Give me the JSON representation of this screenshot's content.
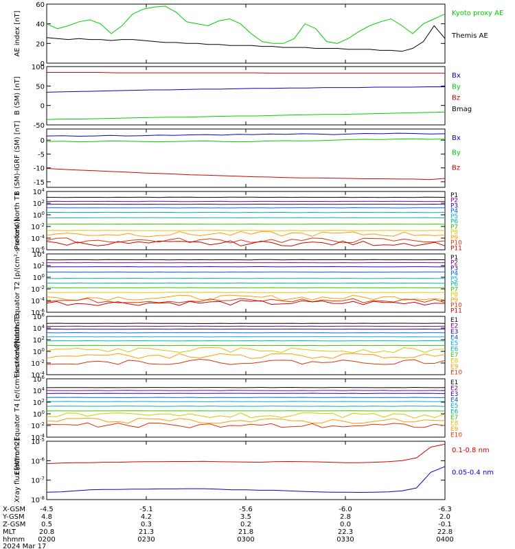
{
  "chart_data": [
    {
      "type": "line",
      "ylabel": "AE index [nT]",
      "ylim": [
        0,
        60
      ],
      "y_ticks": [
        "0",
        "20",
        "40",
        "60"
      ],
      "series": [
        {
          "name": "Kyoto proxy AE",
          "color": "#00cc00",
          "values": [
            40,
            35,
            38,
            42,
            44,
            40,
            30,
            38,
            50,
            55,
            57,
            58,
            52,
            42,
            40,
            38,
            43,
            45,
            40,
            30,
            22,
            20,
            20,
            25,
            40,
            35,
            22,
            20,
            25,
            32,
            38,
            42,
            45,
            38,
            30,
            40,
            45,
            50
          ]
        },
        {
          "name": "Themis AE",
          "color": "#000000",
          "values": [
            26,
            25,
            24,
            25,
            24,
            24,
            23,
            24,
            24,
            23,
            22,
            21,
            21,
            20,
            20,
            19,
            19,
            18,
            18,
            18,
            17,
            17,
            16,
            16,
            16,
            15,
            15,
            15,
            14,
            14,
            14,
            13,
            13,
            12,
            15,
            22,
            38,
            25
          ]
        }
      ]
    },
    {
      "type": "line",
      "ylabel": "B (SM) [nT]",
      "ylim": [
        -50,
        100
      ],
      "y_ticks": [
        "-50",
        "0",
        "50",
        "100"
      ],
      "series": [
        {
          "name": "Bx",
          "color": "#0000cc",
          "values": [
            34,
            35,
            36,
            37,
            38,
            39,
            40,
            40,
            41,
            42,
            42,
            43,
            44,
            44,
            45,
            45,
            46,
            46,
            46,
            47,
            47,
            47,
            48,
            48
          ]
        },
        {
          "name": "By",
          "color": "#00cc00",
          "values": [
            -36,
            -35,
            -35,
            -34,
            -33,
            -32,
            -31,
            -30,
            -30,
            -29,
            -28,
            -27,
            -27,
            -26,
            -25,
            -24,
            -23,
            -23,
            -22,
            -21,
            -20,
            -19,
            -18,
            -17
          ]
        },
        {
          "name": "Bz",
          "color": "#cc0000",
          "values": [
            85,
            85,
            85,
            85,
            84,
            84,
            84,
            84,
            84,
            84,
            84,
            84,
            84,
            83,
            83,
            83,
            83,
            83,
            83,
            83,
            83,
            83,
            83,
            83
          ]
        },
        {
          "name": "Bmag",
          "color": "#000000",
          "values": [
            100,
            100,
            100,
            100,
            100,
            100,
            100,
            100,
            100,
            100,
            100,
            100,
            100,
            100,
            100,
            100,
            100,
            100,
            100,
            100,
            100,
            100,
            100,
            100
          ]
        }
      ]
    },
    {
      "type": "line",
      "ylabel": "B (SM)-IGRF (SM) [nT]",
      "ylim": [
        -17,
        4
      ],
      "y_ticks": [
        "-15",
        "-10",
        "-5",
        "0"
      ],
      "series": [
        {
          "name": "Bx",
          "color": "#0000cc",
          "values": [
            1.5,
            1.6,
            1.4,
            1.5,
            1.7,
            1.5,
            1.6,
            1.8,
            1.7,
            1.9,
            2.0,
            1.8,
            2.1,
            2.0,
            2.2,
            2.1,
            2.3,
            2.2,
            2.0,
            2.2,
            2.4,
            2.3,
            2.5,
            2.4,
            2.2,
            2.3
          ]
        },
        {
          "name": "By",
          "color": "#00cc00",
          "values": [
            -0.5,
            -0.4,
            -0.6,
            -0.5,
            -0.3,
            -0.4,
            -0.5,
            -0.6,
            -0.5,
            -0.4,
            -0.3,
            -0.5,
            -0.6,
            -0.5,
            -0.3,
            -0.2,
            -0.3,
            -0.2,
            0.0,
            0.2,
            0.3,
            0.2,
            0.4,
            0.5,
            0.3,
            0.4
          ]
        },
        {
          "name": "Bz",
          "color": "#cc0000",
          "values": [
            -10.2,
            -10.5,
            -10.8,
            -11.0,
            -11.3,
            -11.5,
            -11.8,
            -12.0,
            -12.2,
            -12.5,
            -12.6,
            -12.8,
            -13.0,
            -13.2,
            -13.3,
            -13.5,
            -13.6,
            -13.6,
            -13.7,
            -13.8,
            -13.9,
            -13.9,
            -14.0,
            -14.0,
            -14.2,
            -13.8
          ]
        }
      ]
    },
    {
      "type": "line",
      "ylabel": "Protons North T1",
      "scale": "log",
      "y_ticks": [
        "10^-6",
        "10^-4",
        "10^-2",
        "10^0",
        "10^2",
        "10^4"
      ],
      "channels": [
        "P1",
        "P2",
        "P3",
        "P4",
        "P5",
        "P6",
        "P7",
        "P8",
        "P9",
        "P10",
        "P11"
      ],
      "channel_colors": [
        "#000000",
        "#7a008a",
        "#2000b0",
        "#0060e0",
        "#00aad8",
        "#00b890",
        "#30c800",
        "#d4c800",
        "#ff9a00",
        "#e03000",
        "#c80000"
      ],
      "log_levels": [
        3.0,
        2.3,
        1.8,
        1.2,
        0.4,
        -0.5,
        -1.6,
        -2.7,
        -3.3,
        -4.4,
        -4.9
      ]
    },
    {
      "type": "line",
      "ylabel": "Protons Equator T2 [p/(cm²-s-sr-keV)]",
      "scale": "log",
      "y_ticks": [
        "10^-6",
        "10^-4",
        "10^-2",
        "10^0",
        "10^2",
        "10^4"
      ],
      "channels": [
        "P1",
        "P2",
        "P3",
        "P4",
        "P5",
        "P6",
        "P7",
        "P8",
        "P9",
        "P10",
        "P11"
      ],
      "channel_colors": [
        "#000000",
        "#7a008a",
        "#2000b0",
        "#0060e0",
        "#00aad8",
        "#00b890",
        "#30c800",
        "#d4c800",
        "#ff9a00",
        "#e03000",
        "#c80000"
      ],
      "log_levels": [
        3.0,
        2.5,
        1.8,
        0.9,
        -0.2,
        -1.0,
        -1.8,
        -2.6,
        -3.5,
        -4.0,
        -4.4
      ]
    },
    {
      "type": "line",
      "ylabel": "Electrons North T3",
      "scale": "log",
      "y_ticks": [
        "10^-4",
        "10^-2",
        "10^0",
        "10^2",
        "10^4",
        "10^6"
      ],
      "channels": [
        "E1",
        "E2",
        "E3",
        "E4",
        "E5",
        "E6",
        "E7",
        "E8",
        "E9",
        "E10"
      ],
      "channel_colors": [
        "#000000",
        "#7a008a",
        "#2000b0",
        "#0060e0",
        "#00aad8",
        "#00b890",
        "#30c800",
        "#d4c800",
        "#ff9a00",
        "#e03000"
      ],
      "log_levels": [
        4.8,
        4.3,
        3.8,
        3.2,
        2.5,
        1.8,
        1.0,
        0.2,
        -0.8,
        -1.8
      ]
    },
    {
      "type": "line",
      "ylabel": "Electrons Equator T4 [e/(cm²-s-sr-keV)]",
      "scale": "log",
      "y_ticks": [
        "10^-4",
        "10^-2",
        "10^0",
        "10^2",
        "10^4",
        "10^6"
      ],
      "channels": [
        "E1",
        "E2",
        "E3",
        "E4",
        "E5",
        "E6",
        "E7",
        "E8",
        "E9",
        "E10"
      ],
      "channel_colors": [
        "#000000",
        "#7a008a",
        "#2000b0",
        "#0060e0",
        "#00aad8",
        "#00b890",
        "#30c800",
        "#d4c800",
        "#ff9a00",
        "#e03000"
      ],
      "log_levels": [
        4.5,
        4.0,
        3.5,
        2.8,
        2.1,
        1.3,
        0.5,
        -0.3,
        -1.2,
        -2.0
      ]
    },
    {
      "type": "line",
      "ylabel": "Xray flux [W/m^2]",
      "scale": "log",
      "y_ticks": [
        "10^-8",
        "10^-7",
        "10^-6",
        "10^-5"
      ],
      "series": [
        {
          "name": "0.1-0.8 nm",
          "color": "#cc0000",
          "log_values": [
            -6.15,
            -6.12,
            -6.1,
            -6.1,
            -6.08,
            -6.08,
            -6.06,
            -6.05,
            -6.05,
            -6.04,
            -6.04,
            -6.03,
            -6.05,
            -6.06,
            -6.07,
            -6.08,
            -6.05,
            -6.04,
            -6.05,
            -6.06,
            -6.08,
            -6.1,
            -6.1,
            -6.08,
            -6.05,
            -6.0,
            -5.85,
            -5.3,
            -5.15
          ]
        },
        {
          "name": "0.05-0.4 nm",
          "color": "#0000cc",
          "log_values": [
            -7.62,
            -7.6,
            -7.55,
            -7.5,
            -7.48,
            -7.48,
            -7.46,
            -7.46,
            -7.45,
            -7.45,
            -7.44,
            -7.44,
            -7.46,
            -7.5,
            -7.5,
            -7.52,
            -7.52,
            -7.55,
            -7.58,
            -7.6,
            -7.62,
            -7.62,
            -7.63,
            -7.62,
            -7.6,
            -7.55,
            -7.4,
            -6.6,
            -6.3
          ]
        }
      ]
    }
  ],
  "axis_table": {
    "rows": [
      {
        "label": "X-GSM",
        "values": [
          "-4.5",
          "-5.1",
          "-5.6",
          "-6.0",
          "-6.3"
        ]
      },
      {
        "label": "Y-GSM",
        "values": [
          "4.8",
          "4.2",
          "3.5",
          "2.8",
          "2.0"
        ]
      },
      {
        "label": "Z-GSM",
        "values": [
          "0.5",
          "0.3",
          "0.2",
          "0.0",
          "-0.1"
        ]
      },
      {
        "label": "MLT",
        "values": [
          "20.8",
          "21.3",
          "21.8",
          "22.3",
          "22.8"
        ]
      },
      {
        "label": "hhmm",
        "values": [
          "0200",
          "0230",
          "0300",
          "0330",
          "0400"
        ]
      }
    ],
    "date": "2024 Mar 17"
  }
}
